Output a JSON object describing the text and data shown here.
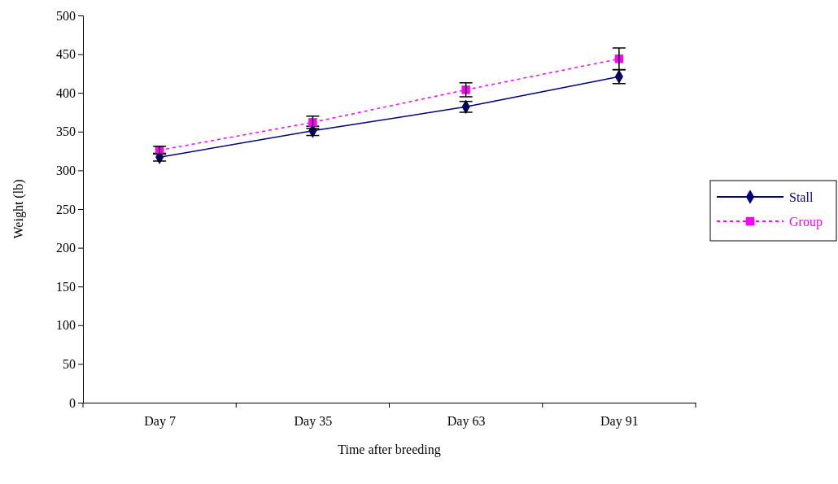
{
  "chart_data": {
    "type": "line",
    "xlabel": "Time after breeding",
    "ylabel": "Weight (lb)",
    "categories": [
      "Day 7",
      "Day 35",
      "Day 63",
      "Day 91"
    ],
    "series": [
      {
        "name": "Stall",
        "color": "#000080",
        "marker": "diamond",
        "line_style": "solid",
        "values": [
          317,
          351,
          382,
          421
        ],
        "errors": [
          5,
          6,
          7,
          9
        ]
      },
      {
        "name": "Group",
        "color": "#ff00ff",
        "marker": "square",
        "line_style": "dotted",
        "values": [
          326,
          362,
          404,
          444
        ],
        "errors": [
          5,
          8,
          9,
          14
        ]
      }
    ],
    "ylim": [
      0,
      500
    ],
    "yticks": [
      0,
      50,
      100,
      150,
      200,
      250,
      300,
      350,
      400,
      450,
      500
    ],
    "grid": false,
    "legend": "right"
  }
}
